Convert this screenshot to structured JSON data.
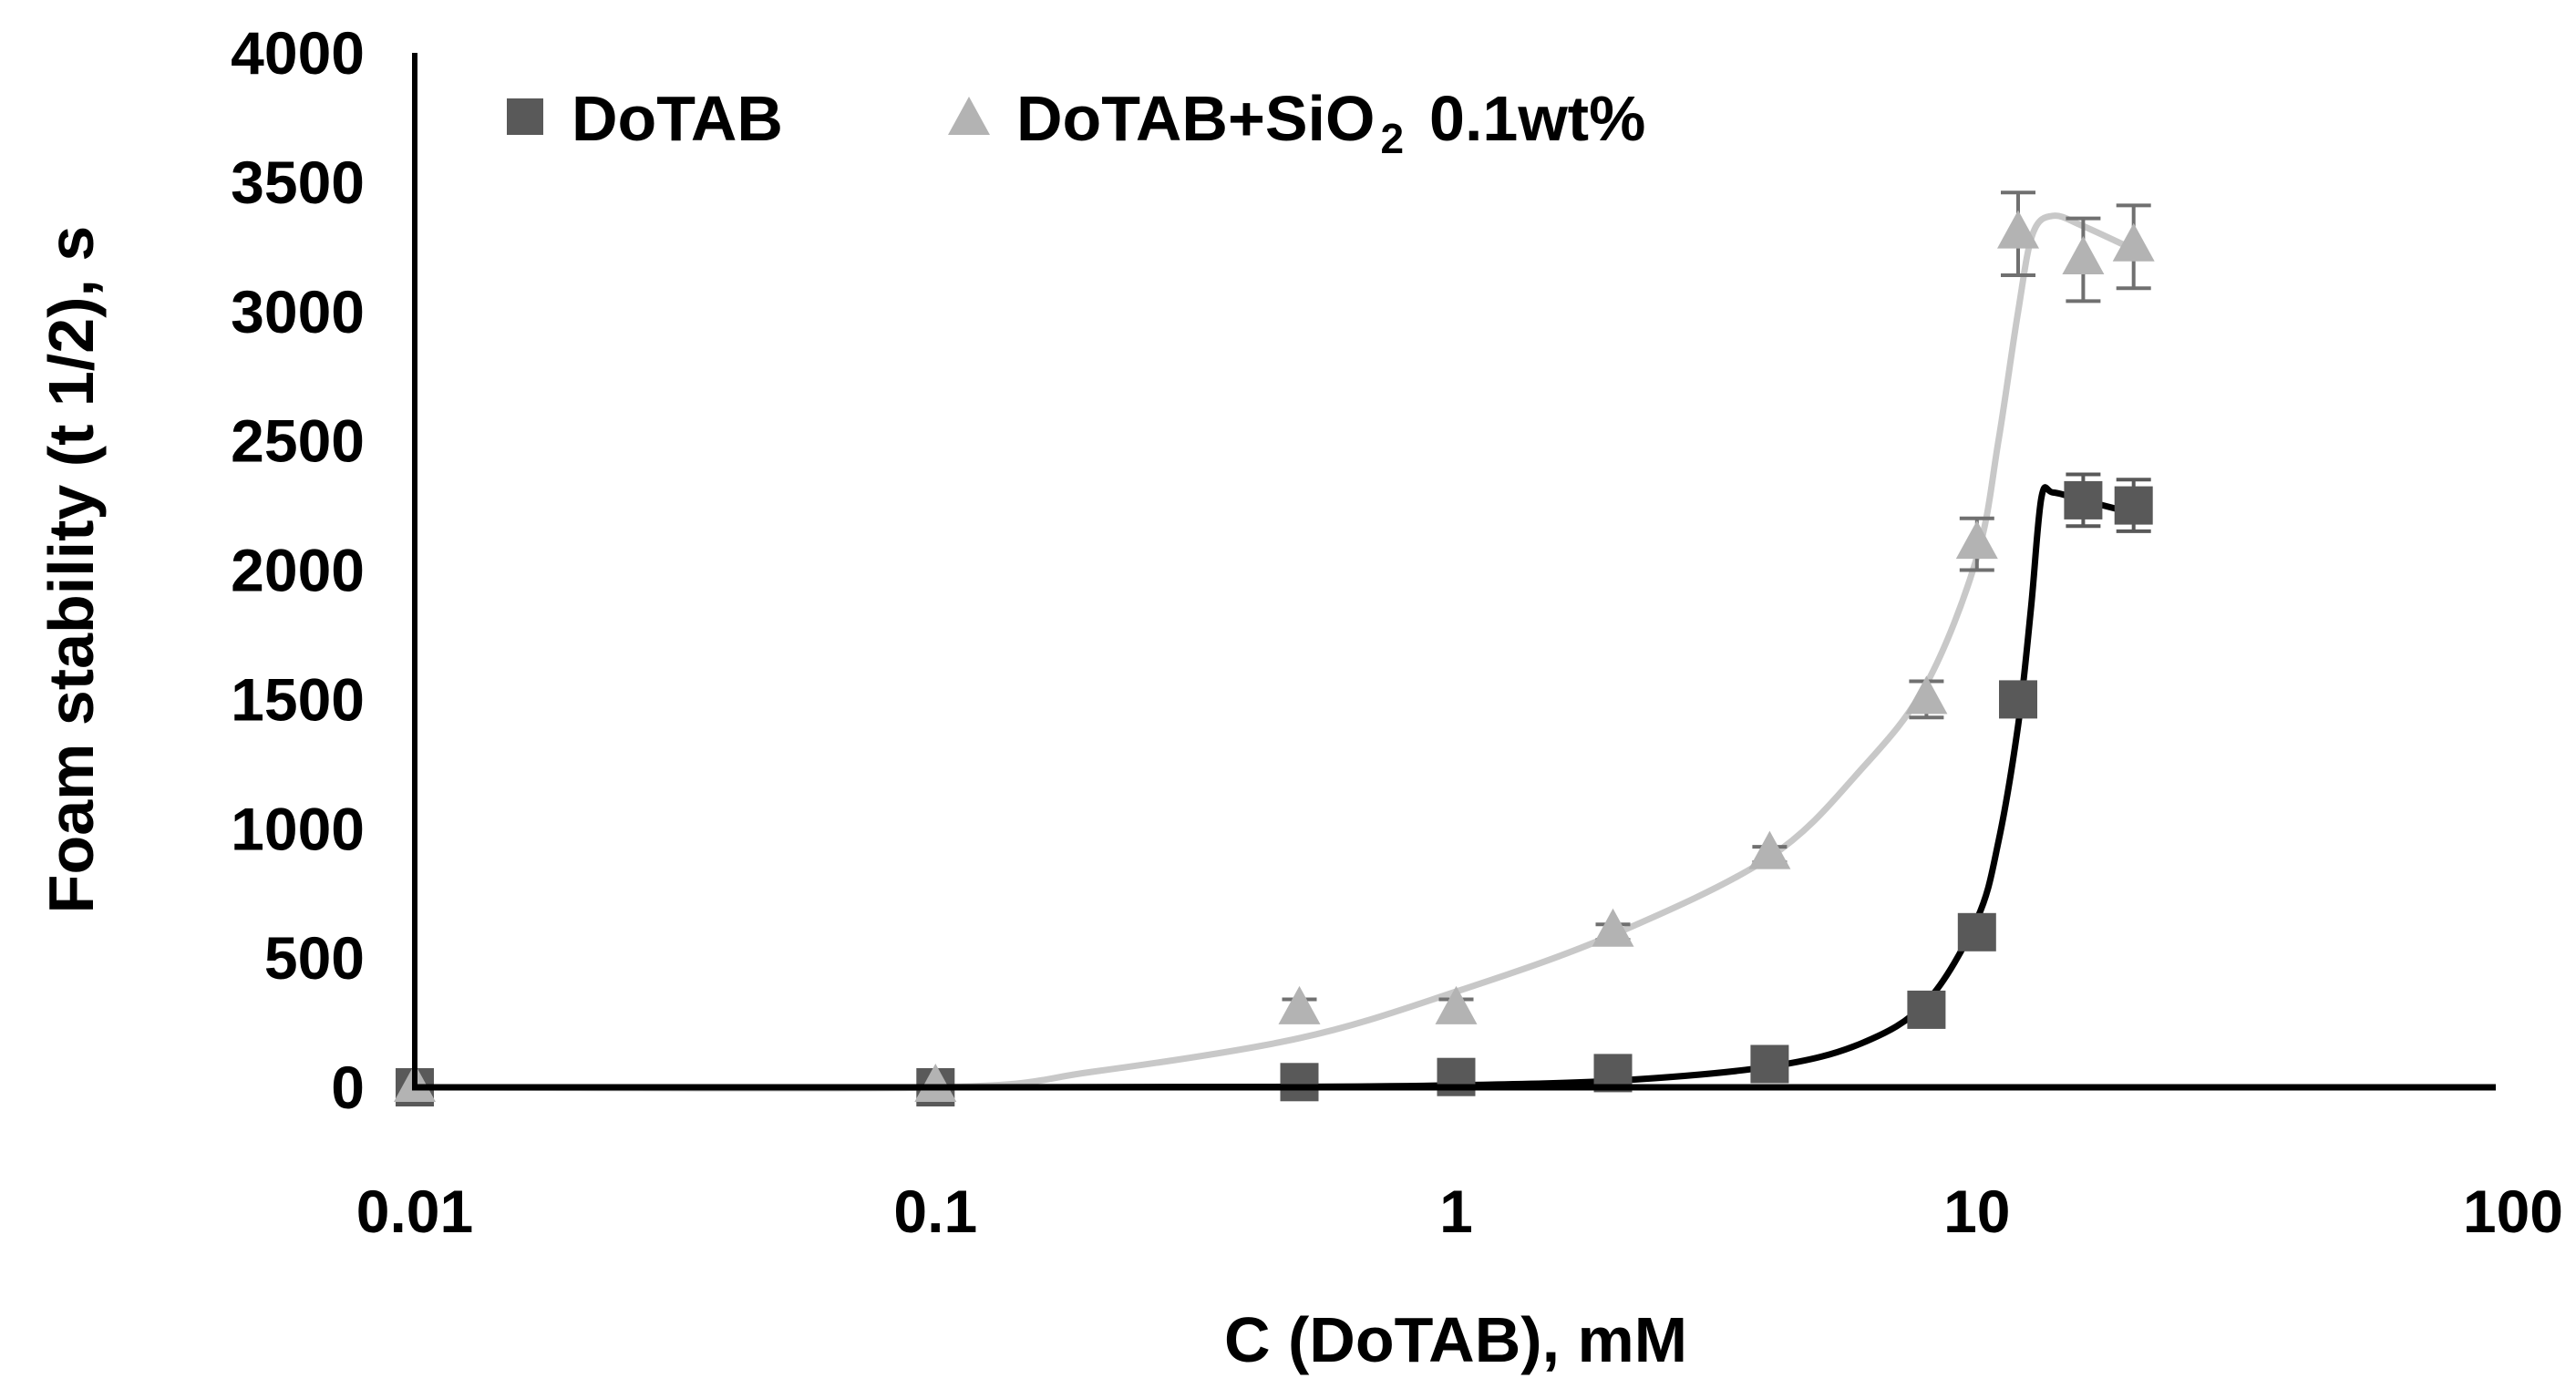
{
  "chart_data": {
    "type": "scatter",
    "title": "",
    "xlabel": "C (DoTAB), mM",
    "ylabel": "Foam stability (t 1/2), s",
    "xscale": "log",
    "xlim": [
      0.01,
      100
    ],
    "ylim": [
      0,
      4000
    ],
    "xticks": [
      {
        "value": 0.01,
        "label": "0.01"
      },
      {
        "value": 0.1,
        "label": "0.1"
      },
      {
        "value": 1,
        "label": "1"
      },
      {
        "value": 10,
        "label": "10"
      },
      {
        "value": 100,
        "label": "100"
      }
    ],
    "yticks": [
      {
        "value": 0,
        "label": "0"
      },
      {
        "value": 500,
        "label": "500"
      },
      {
        "value": 1000,
        "label": "1000"
      },
      {
        "value": 1500,
        "label": "1500"
      },
      {
        "value": 2000,
        "label": "2000"
      },
      {
        "value": 2500,
        "label": "2500"
      },
      {
        "value": 3000,
        "label": "3000"
      },
      {
        "value": 3500,
        "label": "3500"
      },
      {
        "value": 4000,
        "label": "4000"
      }
    ],
    "grid": false,
    "legend_position": "top",
    "series": [
      {
        "name": "DoTAB",
        "marker": "square",
        "color": "#595959",
        "line_color": "#000000",
        "points": [
          {
            "x": 0.01,
            "y": 0,
            "err": 0
          },
          {
            "x": 0.1,
            "y": 0,
            "err": 0
          },
          {
            "x": 0.5,
            "y": 20,
            "err": 0
          },
          {
            "x": 1,
            "y": 40,
            "err": 0
          },
          {
            "x": 2,
            "y": 55,
            "err": 0
          },
          {
            "x": 4,
            "y": 90,
            "err": 0
          },
          {
            "x": 8,
            "y": 300,
            "err": 0
          },
          {
            "x": 10,
            "y": 600,
            "err": 0
          },
          {
            "x": 12,
            "y": 1500,
            "err": 0
          },
          {
            "x": 16,
            "y": 2270,
            "err": 100
          },
          {
            "x": 20,
            "y": 2250,
            "err": 100
          }
        ],
        "fit_curve": [
          {
            "x": 0.01,
            "y": 0
          },
          {
            "x": 0.1,
            "y": 0
          },
          {
            "x": 0.5,
            "y": 2
          },
          {
            "x": 1,
            "y": 8
          },
          {
            "x": 2,
            "y": 25
          },
          {
            "x": 4,
            "y": 80
          },
          {
            "x": 6,
            "y": 170
          },
          {
            "x": 8,
            "y": 330
          },
          {
            "x": 10,
            "y": 650
          },
          {
            "x": 11,
            "y": 950
          },
          {
            "x": 12,
            "y": 1400
          },
          {
            "x": 12.7,
            "y": 1850
          },
          {
            "x": 13.3,
            "y": 2280
          },
          {
            "x": 14,
            "y": 2300
          },
          {
            "x": 16,
            "y": 2270
          },
          {
            "x": 20,
            "y": 2220
          }
        ]
      },
      {
        "name": "DoTAB+SiO",
        "name_subscript": "2",
        "name_suffix": "0.1wt%",
        "marker": "triangle",
        "color": "#b3b3b3",
        "line_color": "#c8c8c8",
        "errbar_color": "#707070",
        "points": [
          {
            "x": 0.01,
            "y": 0,
            "err": 0
          },
          {
            "x": 0.1,
            "y": 0,
            "err": 0
          },
          {
            "x": 0.5,
            "y": 300,
            "err": 40
          },
          {
            "x": 1,
            "y": 300,
            "err": 40
          },
          {
            "x": 2,
            "y": 600,
            "err": 30
          },
          {
            "x": 4,
            "y": 900,
            "err": 30
          },
          {
            "x": 8,
            "y": 1500,
            "err": 70
          },
          {
            "x": 10,
            "y": 2100,
            "err": 100
          },
          {
            "x": 12,
            "y": 3300,
            "err": 160
          },
          {
            "x": 16,
            "y": 3200,
            "err": 160
          },
          {
            "x": 20,
            "y": 3250,
            "err": 160
          }
        ],
        "fit_curve": [
          {
            "x": 0.01,
            "y": 0
          },
          {
            "x": 0.1,
            "y": 0
          },
          {
            "x": 0.2,
            "y": 60
          },
          {
            "x": 0.5,
            "y": 190
          },
          {
            "x": 1,
            "y": 370
          },
          {
            "x": 2,
            "y": 590
          },
          {
            "x": 4,
            "y": 890
          },
          {
            "x": 6,
            "y": 1230
          },
          {
            "x": 8,
            "y": 1560
          },
          {
            "x": 10,
            "y": 2050
          },
          {
            "x": 11,
            "y": 2500
          },
          {
            "x": 12,
            "y": 3000
          },
          {
            "x": 12.8,
            "y": 3300
          },
          {
            "x": 14,
            "y": 3370
          },
          {
            "x": 16,
            "y": 3330
          },
          {
            "x": 20,
            "y": 3240
          }
        ]
      }
    ]
  }
}
